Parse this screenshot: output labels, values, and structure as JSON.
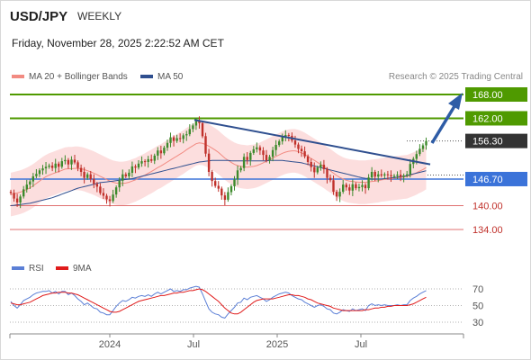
{
  "header": {
    "symbol": "USD/JPY",
    "period": "WEEKLY",
    "date": "Friday, November 28, 2025 2:22:52 AM CET",
    "copyright": "Research © 2025 Trading Central"
  },
  "legend": {
    "ma20": "MA 20 + Bollinger Bands",
    "ma50": "MA 50",
    "rsi": "RSI",
    "rsi_ma": "9MA"
  },
  "colors": {
    "bull": "#3d8a2c",
    "bear": "#c0302a",
    "ma20": "#f28b82",
    "ma50": "#2f4f8f",
    "band": "#fbd3d3",
    "resistance": "#4f9a00",
    "support_blue": "#3b73d9",
    "support_red": "#e07070",
    "price_box": "#333333",
    "arrow": "#2e5ca6",
    "rsi": "#5b7fd6",
    "rsi_ma": "#e01b1b"
  },
  "chart_data": [
    {
      "type": "candlestick",
      "title": "USD/JPY WEEKLY",
      "ylim": [
        130,
        170
      ],
      "x_ticks": [
        "2024",
        "Jul",
        "2025",
        "Jul"
      ],
      "levels": [
        {
          "value": 168.0,
          "label": "168.00",
          "kind": "resistance"
        },
        {
          "value": 162.0,
          "label": "162.00",
          "kind": "resistance"
        },
        {
          "value": 156.3,
          "label": "156.30",
          "kind": "last"
        },
        {
          "value": 146.7,
          "label": "146.70",
          "kind": "support_blue"
        },
        {
          "value": 140.0,
          "label": "140.00",
          "kind": "support_red"
        },
        {
          "value": 134.0,
          "label": "134.00",
          "kind": "support_red"
        }
      ],
      "closes": [
        143.2,
        141.8,
        140.8,
        142.3,
        144.1,
        145.3,
        146.1,
        147.4,
        148.0,
        148.9,
        149.4,
        149.8,
        150.1,
        149.5,
        150.6,
        149.8,
        151.2,
        151.5,
        150.4,
        151.6,
        150.9,
        149.5,
        148.5,
        147.0,
        147.9,
        146.7,
        145.5,
        144.8,
        143.2,
        142.5,
        141.6,
        141.2,
        142.8,
        144.6,
        146.3,
        147.9,
        147.4,
        148.3,
        149.9,
        149.6,
        150.6,
        151.2,
        151.0,
        151.7,
        151.3,
        152.6,
        153.9,
        153.2,
        154.6,
        155.8,
        157.2,
        156.3,
        157.0,
        156.8,
        157.7,
        158.0,
        159.3,
        160.2,
        161.3,
        160.8,
        157.5,
        153.1,
        148.5,
        146.2,
        145.0,
        144.3,
        142.6,
        141.5,
        143.4,
        144.9,
        146.6,
        148.9,
        149.5,
        152.3,
        151.5,
        153.3,
        154.2,
        154.7,
        153.9,
        152.8,
        151.4,
        152.3,
        154.0,
        155.3,
        156.2,
        157.3,
        157.8,
        157.6,
        156.4,
        155.4,
        154.3,
        153.7,
        152.4,
        151.0,
        149.7,
        148.4,
        149.6,
        150.3,
        149.2,
        147.0,
        146.4,
        143.5,
        142.3,
        143.5,
        145.3,
        144.6,
        143.8,
        145.4,
        144.4,
        144.7,
        145.2,
        144.4,
        147.1,
        148.5,
        147.3,
        147.9,
        147.6,
        147.9,
        147.7,
        147.4,
        147.5,
        147.8,
        147.3,
        147.6,
        147.9,
        150.5,
        151.8,
        153.0,
        154.3,
        155.2,
        156.3
      ],
      "ma20": [
        142.8,
        143.0,
        143.2,
        143.4,
        143.7,
        144.1,
        144.5,
        145.0,
        145.6,
        146.2,
        146.8,
        147.3,
        147.7,
        148.0,
        148.3,
        148.6,
        148.9,
        149.2,
        149.3,
        149.3,
        149.4,
        149.4,
        149.3,
        149.1,
        148.8,
        148.5,
        148.2,
        147.8,
        147.4,
        147.0,
        146.6,
        146.2,
        145.9,
        145.7,
        145.6,
        145.6,
        145.7,
        145.9,
        146.2,
        146.5,
        146.9,
        147.3,
        147.7,
        148.2,
        148.6,
        149.1,
        149.6,
        150.0,
        150.5,
        151.0,
        151.5,
        152.0,
        152.5,
        153.0,
        153.5,
        154.1,
        154.6,
        155.1,
        155.6,
        155.8,
        155.7,
        155.4,
        155.0,
        154.5,
        154.0,
        153.4,
        152.7,
        152.0,
        151.4,
        150.9,
        150.4,
        150.1,
        149.9,
        149.8,
        149.7,
        149.8,
        149.9,
        150.1,
        150.4,
        150.8,
        151.2,
        151.6,
        152.0,
        152.4,
        152.8,
        153.2,
        153.5,
        153.7,
        153.8,
        153.8,
        153.6,
        153.3,
        152.9,
        152.4,
        151.9,
        151.4,
        150.9,
        150.4,
        149.9,
        149.3,
        148.8,
        148.2,
        147.6,
        147.1,
        146.7,
        146.4,
        146.2,
        146.1,
        146.0,
        145.9,
        145.9,
        145.9,
        146.0,
        146.1,
        146.2,
        146.3,
        146.5,
        146.6,
        146.7,
        146.8,
        146.9,
        147.0,
        147.1,
        147.2,
        147.3,
        147.6,
        147.9,
        148.3,
        148.7,
        149.1,
        149.6
      ],
      "ma50": [
        140.0,
        140.1,
        140.2,
        140.3,
        140.4,
        140.5,
        140.6,
        140.8,
        141.0,
        141.2,
        141.4,
        141.6,
        141.8,
        142.0,
        142.3,
        142.6,
        142.9,
        143.2,
        143.5,
        143.8,
        144.1,
        144.4,
        144.6,
        144.8,
        145.0,
        145.2,
        145.4,
        145.6,
        145.8,
        145.9,
        146.0,
        146.1,
        146.2,
        146.3,
        146.4,
        146.5,
        146.6,
        146.7,
        146.8,
        147.0,
        147.2,
        147.4,
        147.6,
        147.8,
        148.0,
        148.2,
        148.4,
        148.6,
        148.8,
        149.0,
        149.2,
        149.4,
        149.6,
        149.8,
        150.0,
        150.2,
        150.4,
        150.6,
        150.8,
        151.0,
        151.1,
        151.2,
        151.3,
        151.4,
        151.4,
        151.4,
        151.4,
        151.4,
        151.4,
        151.3,
        151.3,
        151.3,
        151.3,
        151.3,
        151.3,
        151.3,
        151.3,
        151.3,
        151.3,
        151.3,
        151.3,
        151.4,
        151.4,
        151.4,
        151.4,
        151.4,
        151.3,
        151.2,
        151.1,
        151.0,
        150.9,
        150.8,
        150.6,
        150.4,
        150.2,
        150.0,
        149.8,
        149.6,
        149.4,
        149.2,
        149.0,
        148.8,
        148.6,
        148.4,
        148.2,
        148.0,
        147.8,
        147.6,
        147.4,
        147.2,
        147.0,
        146.9,
        146.8,
        146.7,
        146.7,
        146.7,
        146.7,
        146.8,
        146.9,
        147.0,
        147.1,
        147.2,
        147.3,
        147.4,
        147.6,
        147.8,
        148.0,
        148.2,
        148.4,
        148.6,
        148.8
      ],
      "bollinger_width": 5.5
    },
    {
      "type": "line",
      "title": "RSI",
      "ylim": [
        20,
        80
      ],
      "y_ticks": [
        70,
        50,
        30
      ],
      "series": [
        {
          "name": "RSI",
          "values": [
            55,
            50,
            47,
            51,
            56,
            58,
            60,
            63,
            65,
            66,
            67,
            67,
            68,
            65,
            67,
            64,
            67,
            67,
            63,
            65,
            62,
            58,
            55,
            51,
            53,
            50,
            47,
            46,
            42,
            41,
            39,
            39,
            44,
            49,
            53,
            56,
            55,
            57,
            60,
            59,
            61,
            62,
            61,
            63,
            61,
            64,
            66,
            64,
            66,
            68,
            70,
            67,
            68,
            67,
            69,
            69,
            71,
            72,
            73,
            72,
            64,
            55,
            46,
            42,
            40,
            39,
            36,
            35,
            40,
            44,
            48,
            53,
            54,
            59,
            57,
            60,
            61,
            62,
            60,
            58,
            55,
            57,
            60,
            62,
            64,
            65,
            66,
            65,
            62,
            60,
            58,
            57,
            54,
            52,
            50,
            48,
            50,
            51,
            49,
            46,
            45,
            41,
            40,
            42,
            45,
            44,
            43,
            46,
            44,
            45,
            46,
            44,
            50,
            52,
            50,
            51,
            50,
            51,
            50,
            50,
            50,
            51,
            50,
            51,
            51,
            56,
            59,
            61,
            64,
            66,
            68
          ]
        },
        {
          "name": "9MA",
          "values": [
            53,
            52,
            51,
            51,
            52,
            53,
            54,
            56,
            58,
            60,
            62,
            63,
            64,
            65,
            65,
            66,
            66,
            66,
            65,
            65,
            64,
            63,
            61,
            59,
            57,
            55,
            53,
            51,
            49,
            47,
            45,
            43,
            42,
            42,
            43,
            45,
            47,
            49,
            51,
            53,
            55,
            56,
            57,
            58,
            59,
            60,
            61,
            62,
            62,
            63,
            64,
            65,
            65,
            66,
            66,
            67,
            68,
            68,
            69,
            70,
            69,
            67,
            64,
            61,
            58,
            55,
            51,
            47,
            44,
            41,
            40,
            40,
            42,
            45,
            48,
            51,
            54,
            56,
            57,
            58,
            58,
            58,
            58,
            59,
            60,
            61,
            62,
            63,
            63,
            62,
            62,
            61,
            60,
            58,
            57,
            55,
            53,
            52,
            51,
            50,
            49,
            47,
            46,
            45,
            44,
            44,
            44,
            44,
            44,
            44,
            44,
            45,
            45,
            46,
            47,
            47,
            48,
            48,
            49,
            49,
            50,
            50,
            50,
            50,
            50,
            51,
            52,
            54,
            56,
            58,
            60
          ]
        }
      ]
    }
  ]
}
